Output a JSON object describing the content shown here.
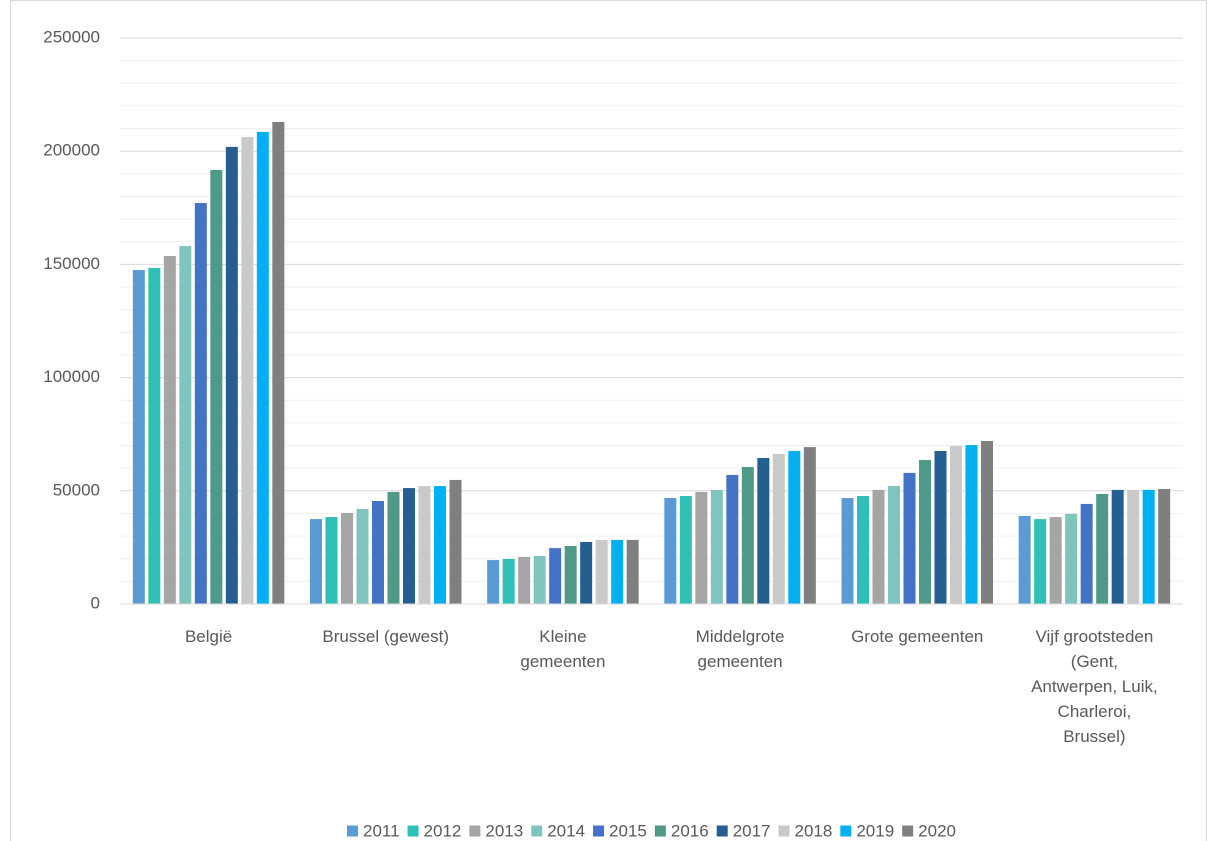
{
  "chart_data": {
    "type": "bar",
    "categories": [
      "België",
      "Brussel (gewest)",
      "Kleine\ngemeenten",
      "Middelgrote\ngemeenten",
      "Grote gemeenten",
      "Vijf grootsteden\n(Gent,\nAntwerpen, Luik,\nCharleroi,\nBrussel)"
    ],
    "series": [
      {
        "name": "2011",
        "color": "#5b9bd5",
        "values": [
          147500,
          37500,
          19400,
          46800,
          46800,
          38900
        ]
      },
      {
        "name": "2012",
        "color": "#2ebfb6",
        "values": [
          148400,
          38400,
          19900,
          47700,
          47700,
          37500
        ]
      },
      {
        "name": "2013",
        "color": "#a5a5a5",
        "values": [
          153700,
          40200,
          20800,
          49500,
          50400,
          38400
        ]
      },
      {
        "name": "2014",
        "color": "#80c5bd",
        "values": [
          158100,
          42000,
          21200,
          50400,
          52100,
          39800
        ]
      },
      {
        "name": "2015",
        "color": "#4472c4",
        "values": [
          177100,
          45500,
          24700,
          57000,
          57900,
          44200
        ]
      },
      {
        "name": "2016",
        "color": "#4e9987",
        "values": [
          191700,
          49500,
          25600,
          60500,
          63600,
          48600
        ]
      },
      {
        "name": "2017",
        "color": "#255e91",
        "values": [
          201900,
          51200,
          27400,
          64500,
          67600,
          50400
        ]
      },
      {
        "name": "2018",
        "color": "#c9c9c9",
        "values": [
          206300,
          52100,
          28300,
          66300,
          69800,
          50400
        ]
      },
      {
        "name": "2019",
        "color": "#00b0f0",
        "values": [
          208500,
          52100,
          28300,
          67600,
          70200,
          50400
        ]
      },
      {
        "name": "2020",
        "color": "#7f7f7f",
        "values": [
          212900,
          54800,
          28300,
          69300,
          72000,
          50800
        ]
      }
    ],
    "ylim": [
      0,
      250000
    ],
    "yticks": [
      0,
      50000,
      100000,
      150000,
      200000,
      250000
    ],
    "grid": true,
    "minor_grid": true,
    "legend": "bottom"
  }
}
